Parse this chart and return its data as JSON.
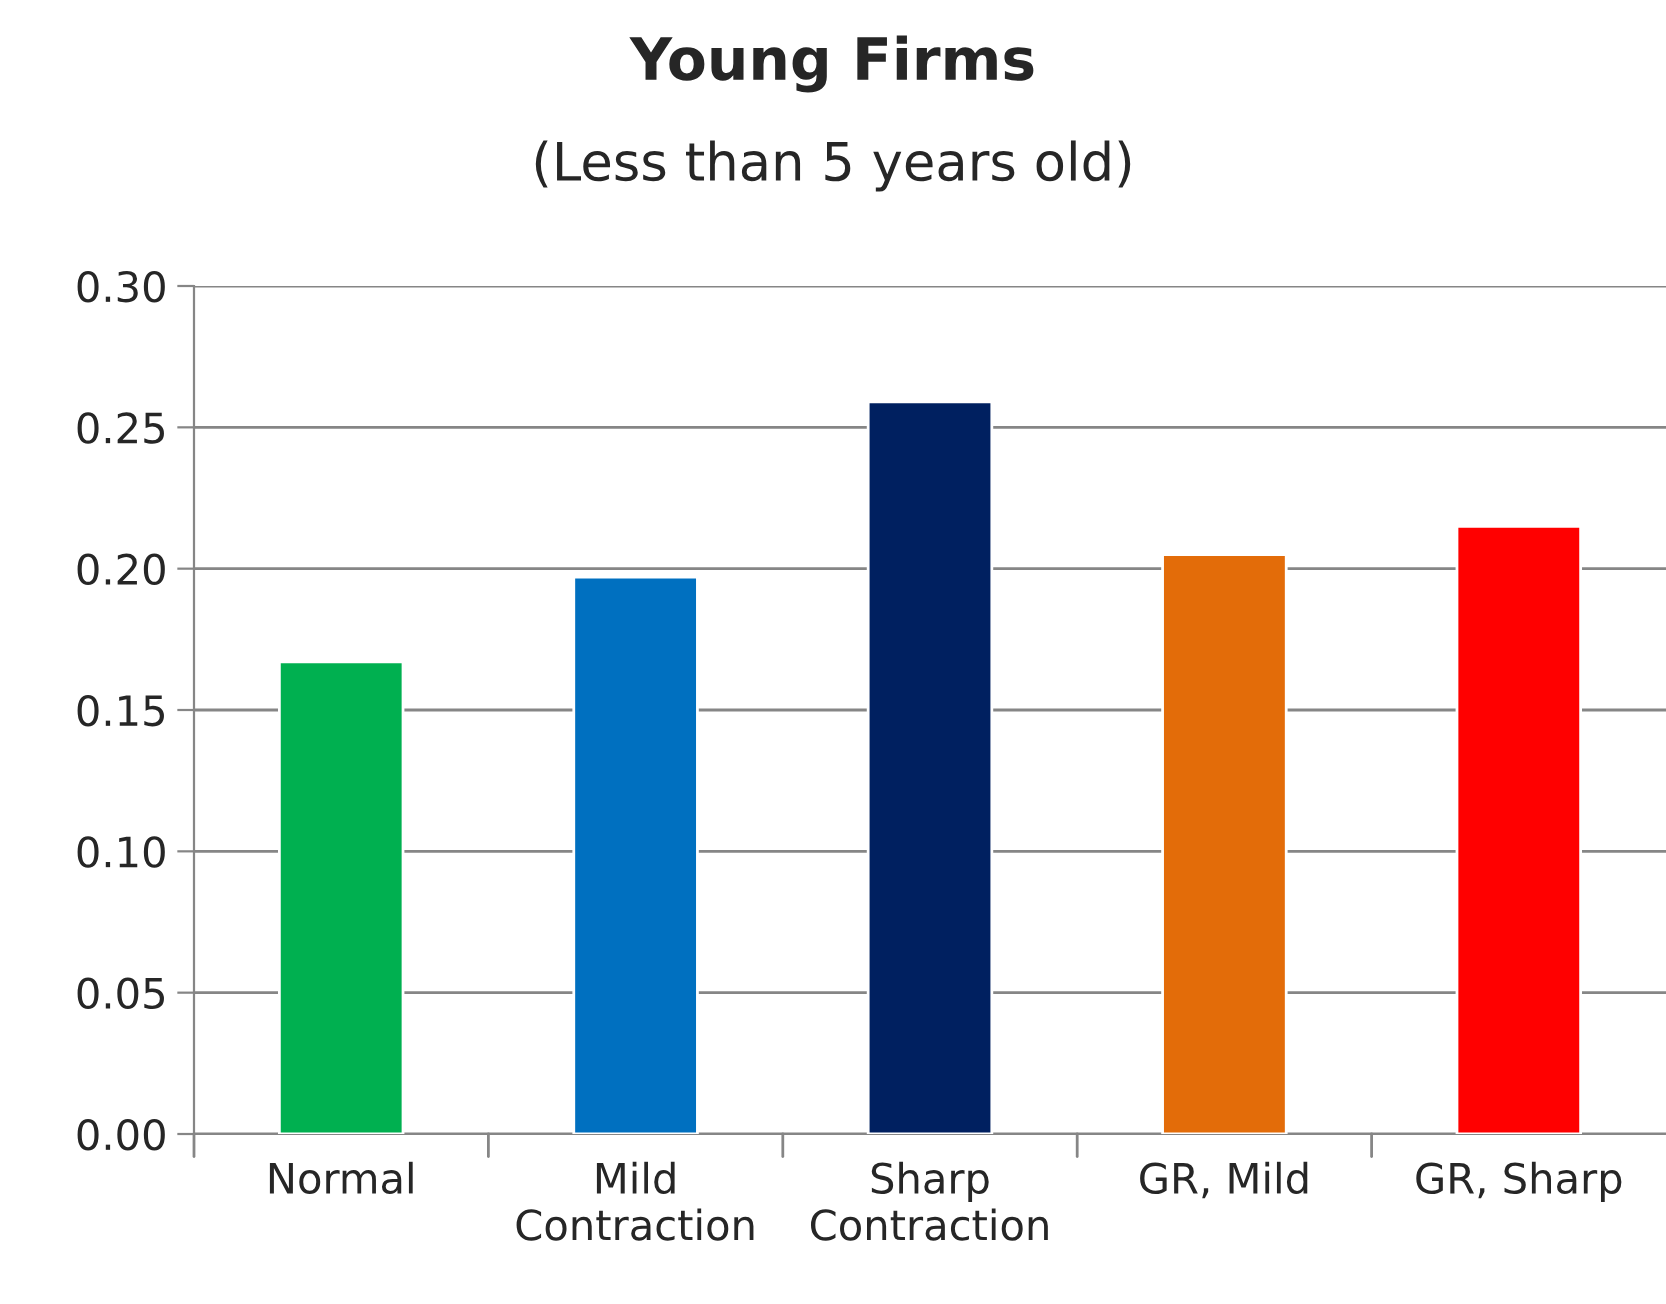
{
  "chart_data": {
    "type": "bar",
    "title": "Young Firms",
    "subtitle": "(Less than 5 years old)",
    "categories": [
      "Normal",
      "Mild\nContraction",
      "Sharp\nContraction",
      "GR, Mild",
      "GR, Sharp"
    ],
    "values": [
      0.167,
      0.197,
      0.259,
      0.205,
      0.215
    ],
    "colors": [
      "#00b050",
      "#0070c0",
      "#002060",
      "#e36c09",
      "#ff0000"
    ],
    "ylim": [
      0,
      0.3
    ],
    "yticks": [
      {
        "value": 0,
        "label": "0.00"
      },
      {
        "value": 0.05,
        "label": "0.05"
      },
      {
        "value": 0.1,
        "label": "0.10"
      },
      {
        "value": 0.15,
        "label": "0.15"
      },
      {
        "value": 0.2,
        "label": "0.20"
      },
      {
        "value": 0.25,
        "label": "0.25"
      },
      {
        "value": 0.3,
        "label": "0.30"
      }
    ],
    "grid": "y",
    "legend": false
  }
}
